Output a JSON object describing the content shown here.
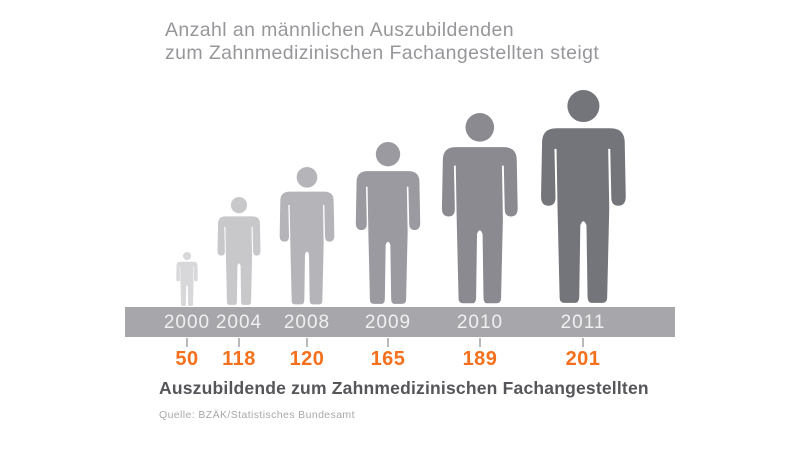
{
  "title": {
    "line1": "Anzahl an männlichen Auszubildenden",
    "line2": "zum Zahnmedizinischen Fachangestellten steigt"
  },
  "chart_data": {
    "type": "bar",
    "subtype": "pictogram-person-scaled",
    "title": "Anzahl an männlichen Auszubildenden zum Zahnmedizinischen Fachangestellten steigt",
    "categories": [
      "2000",
      "2004",
      "2008",
      "2009",
      "2010",
      "2011"
    ],
    "values": [
      50,
      118,
      120,
      165,
      189,
      201
    ],
    "xlabel": "Auszubildende zum Zahnmedizinischen Fachangestellten",
    "ylabel": "",
    "source": "Quelle: BZÄK/Statistisches Bundesamt",
    "legend": [],
    "grid": false,
    "icon": "person-pictogram-icon",
    "figure_colors": [
      "#d8d8da",
      "#c8c8cb",
      "#b5b5b9",
      "#9a9aa0",
      "#8a8a90",
      "#74747b"
    ],
    "accent_color": "#f4701d",
    "bar_color": "#a7a7ab",
    "year_label_color": "#f0f0f1",
    "title_color": "#97979b",
    "caption_color": "#55555a"
  },
  "footer": {
    "caption": "Auszubildende zum Zahnmedizinischen Fachangestellten",
    "source": "Quelle: BZÄK/Statistisches Bundesamt"
  }
}
